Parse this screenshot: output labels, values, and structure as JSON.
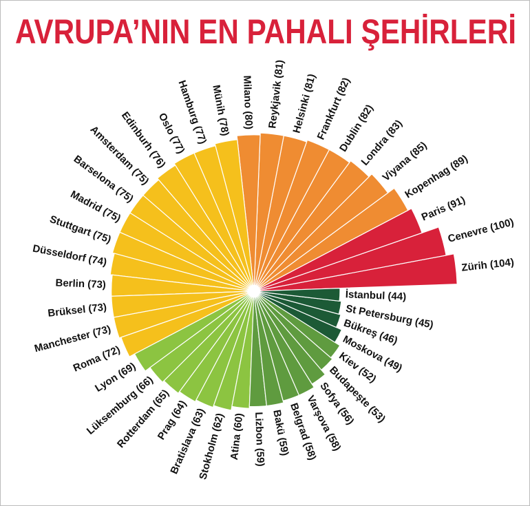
{
  "title": "AVRUPA’NIN EN PAHALI ŞEHİRLERİ",
  "chart_data": {
    "type": "radial-bar",
    "title": "AVRUPA’NIN EN PAHALI ŞEHİRLERİ",
    "highlight": "İstanbul",
    "colors": {
      "red": "#d8213a",
      "orange": "#ef8c32",
      "yellow": "#f5c01c",
      "light_green": "#8cc441",
      "green": "#5f9b3f",
      "dark_green": "#1c5a36",
      "highlight_label": "#d8213a"
    },
    "categories": [
      "Zürih",
      "Cenevre",
      "Paris",
      "Kopenhag",
      "Viyana",
      "Londra",
      "Dublin",
      "Frankfurt",
      "Helsinki",
      "Reykjavik",
      "Milano",
      "Münih",
      "Hamburg",
      "Oslo",
      "Edinburh",
      "Amsterdam",
      "Barselona",
      "Madrid",
      "Stuttgart",
      "Düsseldorf",
      "Berlin",
      "Brüksel",
      "Manchester",
      "Roma",
      "Lyon",
      "Lüksemburg",
      "Rotterdam",
      "Prag",
      "Bratislava",
      "Stokholm",
      "Atina",
      "Lizbon",
      "Bakü",
      "Belgrad",
      "Varşova",
      "Sofya",
      "Budapeşte",
      "Kiev",
      "Moskova",
      "Bükreş",
      "St Petersburg",
      "İstanbul"
    ],
    "values": [
      104,
      100,
      91,
      89,
      85,
      83,
      82,
      82,
      81,
      81,
      80,
      78,
      77,
      77,
      76,
      75,
      75,
      75,
      75,
      74,
      73,
      73,
      73,
      72,
      69,
      66,
      65,
      64,
      63,
      62,
      60,
      59,
      59,
      58,
      58,
      56,
      53,
      52,
      49,
      46,
      45,
      44
    ],
    "labels": [
      "Zürih (104)",
      "Cenevre (100)",
      "Paris (91)",
      "Kopenhag (89)",
      "Viyana (85)",
      "Londra (83)",
      "Dublin (82)",
      "Frankfurt (82)",
      "Helsinki (81)",
      "Reykjavik (81)",
      "Milano (80)",
      "Münih (78)",
      "Hamburg (77)",
      "Oslo (77)",
      "Edinburh (76)",
      "Amsterdam (75)",
      "Barselona (75)",
      "Madrid (75)",
      "Stuttgart (75)",
      "Düsseldorf (74)",
      "Berlin (73)",
      "Brüksel (73)",
      "Manchester (73)",
      "Roma (72)",
      "Lyon (69)",
      "Lüksemburg (66)",
      "Rotterdam (65)",
      "Prag (64)",
      "Bratislava (63)",
      "Stokholm (62)",
      "Atina (60)",
      "Lizbon (59)",
      "Bakü (59)",
      "Belgrad (58)",
      "Varşova (58)",
      "Sofya (56)",
      "Budapeşte (53)",
      "Kiev (52)",
      "Moskova (49)",
      "Bükreş (46)",
      "St Petersburg (45)",
      "İstanbul (44)"
    ]
  }
}
